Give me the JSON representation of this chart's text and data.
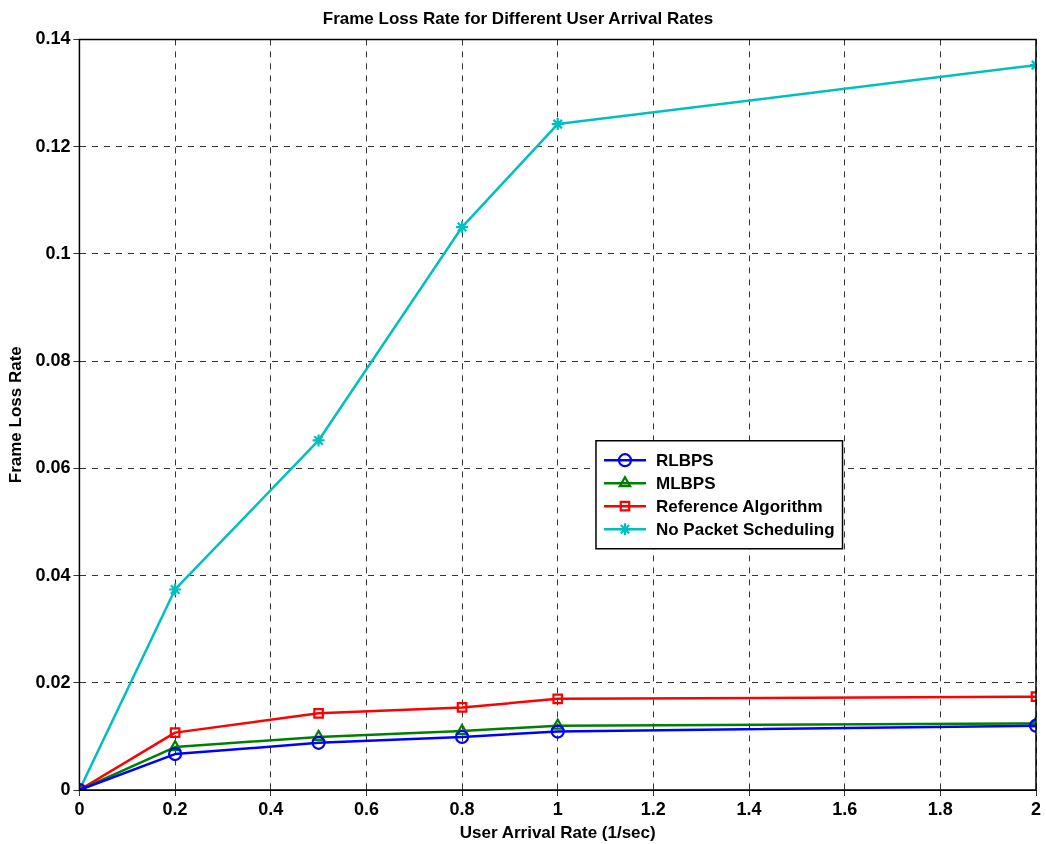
{
  "chart_data": {
    "type": "line",
    "title": "Frame Loss Rate for Different User Arrival Rates",
    "xlabel": "User Arrival Rate (1/sec)",
    "ylabel": "Frame Loss Rate",
    "x": [
      0,
      0.2,
      0.5,
      0.8,
      1,
      2
    ],
    "series": [
      {
        "name": "RLBPS",
        "color": "#0000ff",
        "marker": "circle",
        "values": [
          0,
          0.0067,
          0.0088,
          0.0099,
          0.0109,
          0.012
        ]
      },
      {
        "name": "MLBPS",
        "color": "#008000",
        "marker": "triangle",
        "values": [
          0,
          0.008,
          0.0099,
          0.011,
          0.012,
          0.0124
        ]
      },
      {
        "name": "Reference Algorithm",
        "color": "#ff0000",
        "marker": "square",
        "values": [
          0,
          0.0107,
          0.0143,
          0.0154,
          0.017,
          0.0174
        ]
      },
      {
        "name": "No Packet Scheduling",
        "color": "#00bfbf",
        "marker": "cross",
        "values": [
          0,
          0.0374,
          0.0652,
          0.105,
          0.1242,
          0.1352
        ]
      }
    ],
    "xlim": [
      0,
      2
    ],
    "xticks": [
      0,
      0.2,
      0.4,
      0.6,
      0.8,
      1,
      1.2,
      1.4,
      1.6,
      1.8,
      2
    ],
    "ylim": [
      0,
      0.14
    ],
    "yticks": [
      0,
      0.02,
      0.04,
      0.06,
      0.08,
      0.1,
      0.12,
      0.14
    ],
    "grid": true,
    "legend": "center right",
    "line_style": "solid"
  }
}
